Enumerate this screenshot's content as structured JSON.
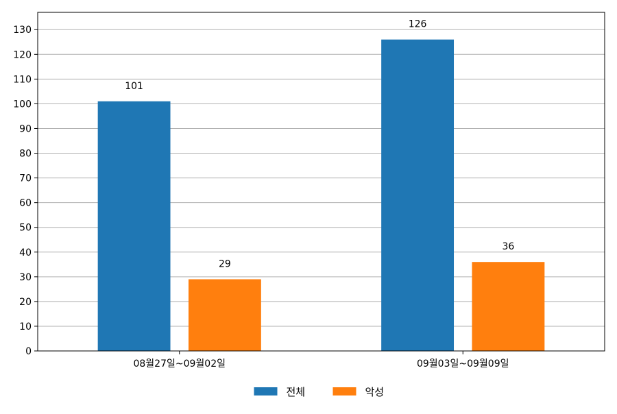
{
  "chart_data": {
    "type": "bar",
    "categories": [
      "08월27일~09월02일",
      "09월03일~09월09일"
    ],
    "series": [
      {
        "name": "전체",
        "values": [
          101,
          126
        ],
        "color": "#1f77b4"
      },
      {
        "name": "악성",
        "values": [
          29,
          36
        ],
        "color": "#ff7f0e"
      }
    ],
    "title": "",
    "xlabel": "",
    "ylabel": "",
    "ylim": [
      0,
      137
    ],
    "yticks": [
      0,
      10,
      20,
      30,
      40,
      50,
      60,
      70,
      80,
      90,
      100,
      110,
      120,
      130
    ],
    "grid": "horizontal",
    "legend_position": "bottom-center"
  }
}
